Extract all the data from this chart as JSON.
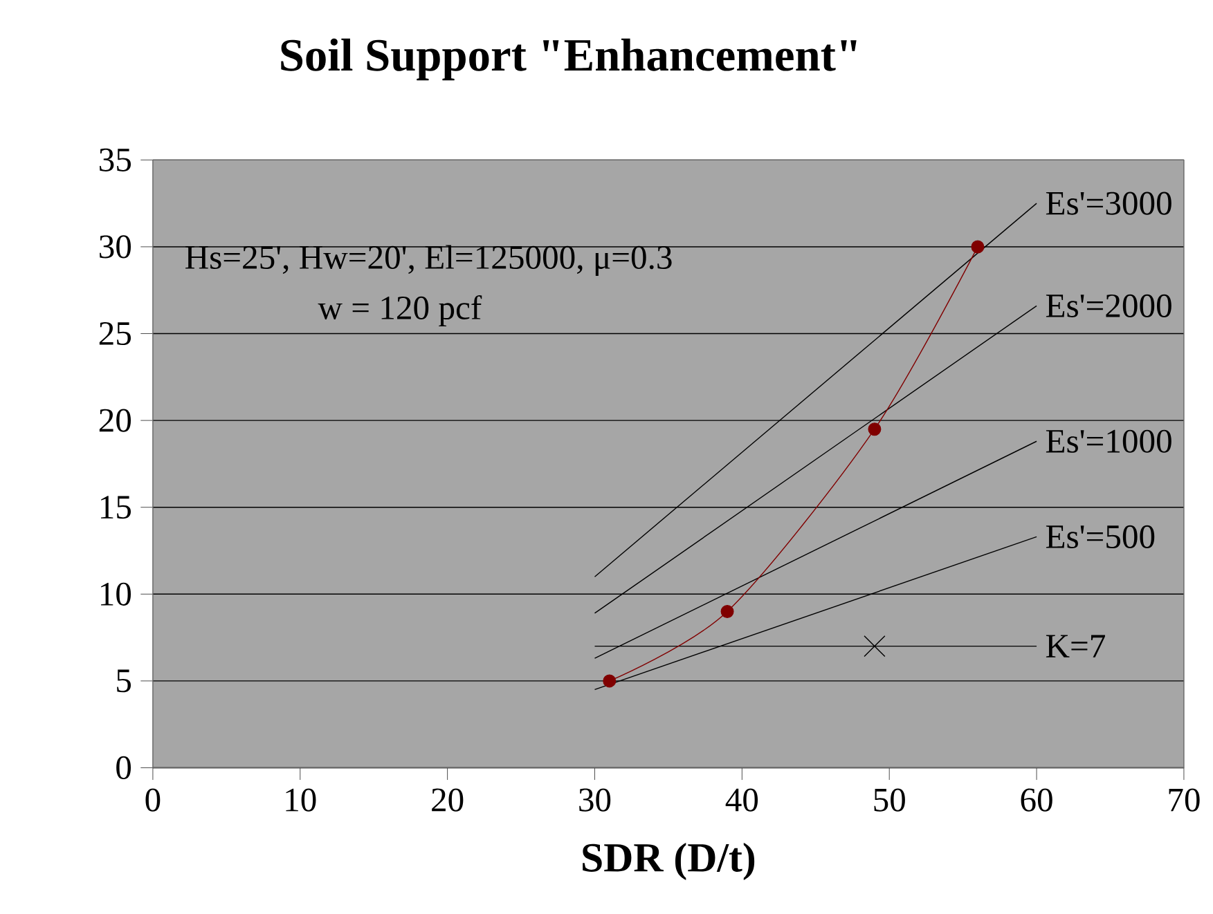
{
  "chart_data": {
    "type": "line",
    "title": "Soil Support \"Enhancement\"",
    "xlabel": "SDR (D/t)",
    "xlim": [
      0,
      70
    ],
    "xticks": [
      0,
      10,
      20,
      30,
      40,
      50,
      60,
      70
    ],
    "ylim": [
      0,
      35
    ],
    "yticks": [
      0,
      5,
      10,
      15,
      20,
      25,
      30,
      35
    ],
    "grid": "y",
    "legend": "right",
    "series": [
      {
        "name": "Es'=3000",
        "color": "#000000",
        "x": [
          30,
          60
        ],
        "values": [
          11,
          32.5
        ]
      },
      {
        "name": "Es'=2000",
        "color": "#000000",
        "x": [
          30,
          60
        ],
        "values": [
          8.9,
          26.6
        ]
      },
      {
        "name": "Es'=1000",
        "color": "#000000",
        "x": [
          30,
          60
        ],
        "values": [
          6.3,
          18.8
        ]
      },
      {
        "name": "Es'=500",
        "color": "#000000",
        "x": [
          30,
          60
        ],
        "values": [
          4.5,
          13.3
        ]
      },
      {
        "name": "K=7",
        "color": "#000000",
        "x": [
          30,
          60
        ],
        "values": [
          7,
          7
        ]
      },
      {
        "type": "scatter",
        "marker": "cross",
        "color": "#000000",
        "x": [
          49
        ],
        "values": [
          7
        ]
      },
      {
        "marker": "circle",
        "color": "#800000",
        "x": [
          31,
          39,
          49,
          56
        ],
        "values": [
          5,
          9,
          19.5,
          30
        ]
      }
    ],
    "annotations": [
      "Hs=25', Hw=20', El=125000, μ=0.3",
      "w = 120 pcf"
    ]
  }
}
